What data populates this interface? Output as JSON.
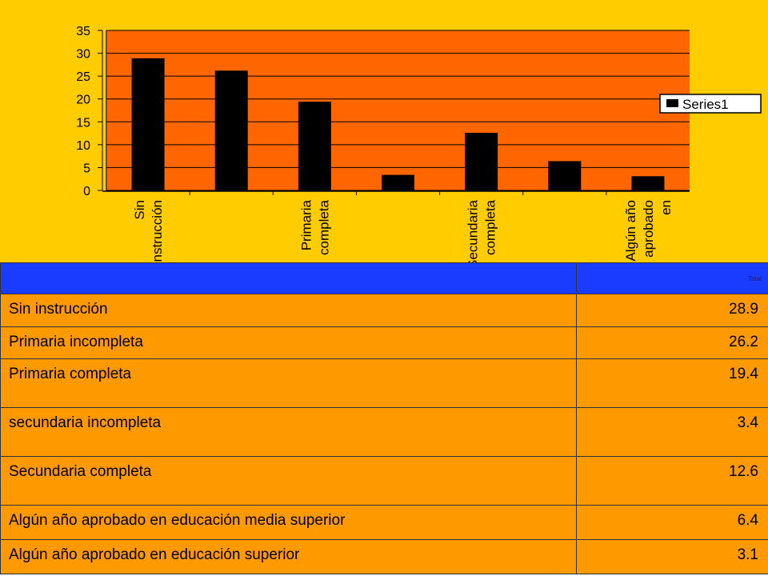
{
  "chart_data": {
    "type": "bar",
    "categories": [
      "Sin instrucción",
      "Primaria incompleta",
      "Primaria completa",
      "secundaria incompleta",
      "Secundaria completa",
      "Algún año aprobado en educación media superior",
      "Algún año aprobado en educación superior"
    ],
    "axis_labels": [
      [
        "Sin",
        "instrucción"
      ],
      [],
      [
        "Primaria",
        "completa"
      ],
      [],
      [
        "Secundaria",
        "completa"
      ],
      [],
      [
        "Algún año",
        "aprobado",
        "en"
      ]
    ],
    "series": [
      {
        "name": "Series1",
        "values": [
          28.9,
          26.2,
          19.4,
          3.4,
          12.6,
          6.4,
          3.1
        ]
      }
    ],
    "ylim": [
      0,
      35
    ],
    "yticks": [
      0,
      5,
      10,
      15,
      20,
      25,
      30,
      35
    ],
    "grid": true,
    "legend": "right",
    "colors": {
      "panel": "#ffcc00",
      "plot": "#ff6600",
      "bar": "#000000",
      "gridline": "#000000"
    }
  },
  "table": {
    "header": {
      "label": "",
      "total": "Total"
    },
    "rows": [
      {
        "label": "Sin instrucción",
        "value": "28.9"
      },
      {
        "label": "Primaria incompleta",
        "value": "26.2"
      },
      {
        "label": "Primaria completa",
        "value": "19.4"
      },
      {
        "label": "secundaria incompleta",
        "value": "3.4"
      },
      {
        "label": "Secundaria completa",
        "value": "12.6"
      },
      {
        "label": "Algún año aprobado en educación media superior",
        "value": "6.4"
      },
      {
        "label": "Algún año aprobado en educación superior",
        "value": "3.1"
      }
    ],
    "colors": {
      "header": "#1a3cff",
      "rows": "#ff9900"
    }
  }
}
